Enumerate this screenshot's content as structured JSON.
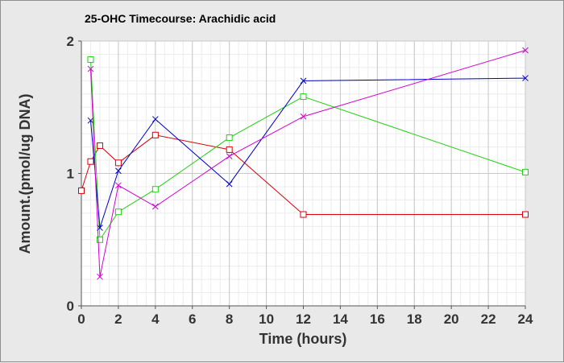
{
  "chart_data": {
    "type": "line",
    "title": "25-OHC Timecourse: Arachidic acid",
    "xlabel": "Time (hours)",
    "ylabel": "Amount.(pmol/ug DNA)",
    "xlim": [
      0,
      24
    ],
    "ylim": [
      0,
      2
    ],
    "x_ticks": [
      0,
      2,
      4,
      6,
      8,
      10,
      12,
      14,
      16,
      18,
      20,
      22,
      24
    ],
    "y_ticks": [
      0,
      1,
      2
    ],
    "grid": true,
    "series": [
      {
        "color": "#d9000a",
        "marker": "square",
        "x": [
          0,
          0.5,
          1,
          2,
          4,
          8,
          12,
          24
        ],
        "y": [
          0.87,
          1.09,
          1.21,
          1.08,
          1.29,
          1.18,
          0.69,
          0.69
        ]
      },
      {
        "color": "#1fd10f",
        "marker": "square",
        "x": [
          0.5,
          1,
          2,
          4,
          8,
          12,
          24
        ],
        "y": [
          1.86,
          0.5,
          0.71,
          0.88,
          1.27,
          1.58,
          1.01
        ]
      },
      {
        "color": "#0000c8",
        "marker": "x",
        "x": [
          0.5,
          1,
          2,
          4,
          8,
          12,
          24
        ],
        "y": [
          1.4,
          0.59,
          1.02,
          1.41,
          0.92,
          1.7,
          1.72
        ]
      },
      {
        "color": "#d600d6",
        "marker": "x",
        "x": [
          0.5,
          1,
          2,
          4,
          8,
          12,
          24
        ],
        "y": [
          1.79,
          0.22,
          0.91,
          0.75,
          1.13,
          1.43,
          1.93
        ]
      }
    ]
  }
}
